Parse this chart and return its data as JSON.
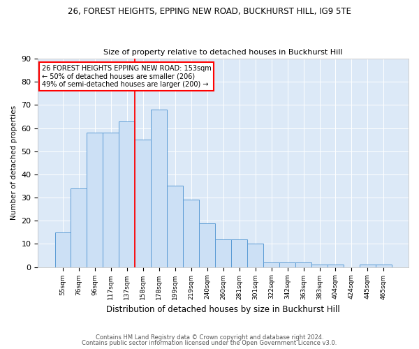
{
  "title1": "26, FOREST HEIGHTS, EPPING NEW ROAD, BUCKHURST HILL, IG9 5TE",
  "title2": "Size of property relative to detached houses in Buckhurst Hill",
  "xlabel": "Distribution of detached houses by size in Buckhurst Hill",
  "ylabel": "Number of detached properties",
  "bar_color": "#cce0f5",
  "bar_edge_color": "#5b9bd5",
  "background_color": "#dce9f7",
  "categories": [
    "55sqm",
    "76sqm",
    "96sqm",
    "117sqm",
    "137sqm",
    "158sqm",
    "178sqm",
    "199sqm",
    "219sqm",
    "240sqm",
    "260sqm",
    "281sqm",
    "301sqm",
    "322sqm",
    "342sqm",
    "363sqm",
    "383sqm",
    "404sqm",
    "424sqm",
    "445sqm",
    "465sqm"
  ],
  "values": [
    15,
    34,
    58,
    58,
    63,
    55,
    68,
    35,
    29,
    19,
    12,
    12,
    10,
    2,
    2,
    2,
    1,
    1,
    0,
    1,
    1
  ],
  "ylim": [
    0,
    90
  ],
  "yticks": [
    0,
    10,
    20,
    30,
    40,
    50,
    60,
    70,
    80,
    90
  ],
  "red_line_x": 4.5,
  "ann_line1": "26 FOREST HEIGHTS EPPING NEW ROAD: 153sqm",
  "ann_line2": "← 50% of detached houses are smaller (206)",
  "ann_line3": "49% of semi-detached houses are larger (200) →",
  "footer1": "Contains HM Land Registry data © Crown copyright and database right 2024.",
  "footer2": "Contains public sector information licensed under the Open Government Licence v3.0."
}
